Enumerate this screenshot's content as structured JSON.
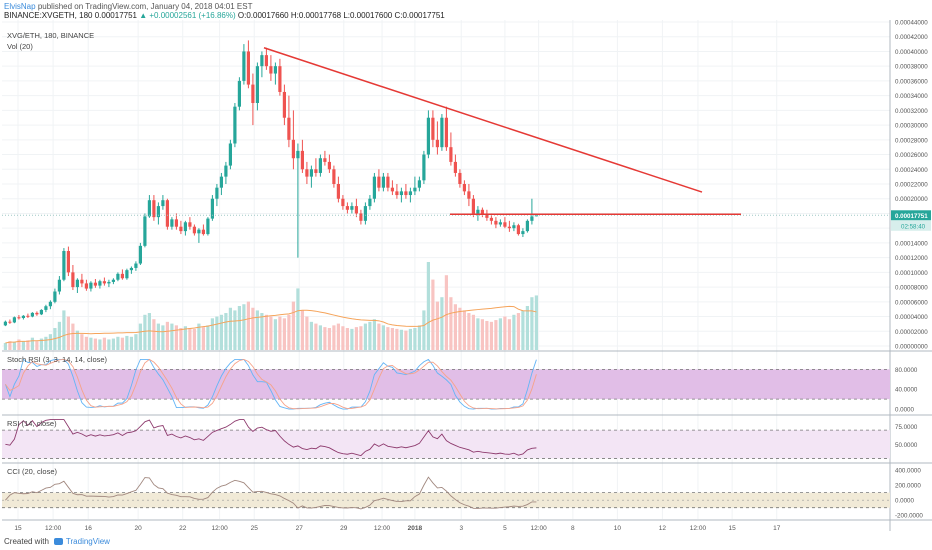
{
  "header": {
    "author": "ElvisNap",
    "published": "published on TradingView.com, January 04, 2018 04:01 EST",
    "symbol_line": "BINANCE:XVGETH, 180",
    "change": "▲ +0.00002561 (+16.86%)",
    "ohlc": "O:0.00017660 H:0.00017768 L:0.00017600 C:0.00017751"
  },
  "colors": {
    "up": "#26a69a",
    "down": "#ef5350",
    "trendline": "#e53935",
    "stoch_fill": "#e1bee7",
    "rsi_fill": "#f3e5f5",
    "cci_fill": "#f1ead7",
    "price_badge": "#26a69a"
  },
  "chart_data": {
    "type": "candlestick",
    "panes": [
      {
        "name": "price",
        "titles": [
          "XVG/ETH, 180, BINANCE",
          "Vol (20)"
        ],
        "ylim": [
          0,
          0.00044
        ],
        "y_ticks": [
          "0.00044000",
          "0.00042000",
          "0.00040000",
          "0.00038000",
          "0.00036000",
          "0.00034000",
          "0.00032000",
          "0.00030000",
          "0.00028000",
          "0.00026000",
          "0.00024000",
          "0.00022000",
          "0.00020000",
          "0.00018000",
          "0.00016000",
          "0.00014000",
          "0.00012000",
          "0.00010000",
          "0.00008000",
          "0.00006000",
          "0.00004000",
          "0.00002000",
          "0.00000000"
        ],
        "last_price": 0.00017751,
        "last_price_label": "0.00017751",
        "countdown_label": "02:58:40",
        "trendline_falling": [
          [
            0,
            0.000405
          ],
          [
            123.7,
            0.000209
          ]
        ],
        "trendline_support": [
          [
            80.8,
            0.00017885
          ],
          [
            125.4,
            0.00017885
          ]
        ],
        "candles": [
          [
            2.8e-05,
            3.45e-05,
            2.7e-05,
            3.3e-05
          ],
          [
            3.3e-05,
            3.6e-05,
            3e-05,
            3.2e-05
          ],
          [
            3.2e-05,
            4e-05,
            3.1e-05,
            3.9e-05
          ],
          [
            3.9e-05,
            4.2e-05,
            3.6e-05,
            3.8e-05
          ],
          [
            3.8e-05,
            4.2e-05,
            3.6e-05,
            4.1e-05
          ],
          [
            4.1e-05,
            4.4e-05,
            3.8e-05,
            4e-05
          ],
          [
            4e-05,
            4.6e-05,
            3.9e-05,
            4.5e-05
          ],
          [
            4.5e-05,
            4.7e-05,
            4.1e-05,
            4.3e-05
          ],
          [
            4.3e-05,
            5e-05,
            4.2e-05,
            4.9e-05
          ],
          [
            4.9e-05,
            5.6e-05,
            4.6e-05,
            5.4e-05
          ],
          [
            5.4e-05,
            6.2e-05,
            5e-05,
            6e-05
          ],
          [
            6e-05,
            7.8e-05,
            5.8e-05,
            7.4e-05
          ],
          [
            7.4e-05,
            9.5e-05,
            7e-05,
            9e-05
          ],
          [
            9e-05,
            0.000133,
            8.8e-05,
            0.000129
          ],
          [
            0.000129,
            0.000135,
            9.5e-05,
            0.0001
          ],
          [
            0.0001,
            0.00011,
            7.6e-05,
            8e-05
          ],
          [
            8e-05,
            9.2e-05,
            7.2e-05,
            9e-05
          ],
          [
            9e-05,
            9.8e-05,
            8e-05,
            8.5e-05
          ],
          [
            8.5e-05,
            9e-05,
            7.5e-05,
            7.8e-05
          ],
          [
            7.8e-05,
            8.8e-05,
            7.4e-05,
            8.6e-05
          ],
          [
            8.6e-05,
            9.1e-05,
            7.9e-05,
            8.2e-05
          ],
          [
            8.2e-05,
            9e-05,
            7.8e-05,
            8.8e-05
          ],
          [
            8.8e-05,
            9.3e-05,
            8.2e-05,
            8.5e-05
          ],
          [
            8.5e-05,
            9e-05,
            8e-05,
            8.7e-05
          ],
          [
            8.7e-05,
            9.2e-05,
            8.4e-05,
            9e-05
          ],
          [
            9e-05,
            0.0001,
            8.8e-05,
            9.8e-05
          ],
          [
            9.8e-05,
            0.000104,
            9e-05,
            9.2e-05
          ],
          [
            9.2e-05,
            0.000105,
            9e-05,
            0.000103
          ],
          [
            0.000103,
            0.000108,
            9.8e-05,
            0.000106
          ],
          [
            0.000106,
            0.000115,
            0.000102,
            0.000112
          ],
          [
            0.000112,
            0.00014,
            0.00011,
            0.000136
          ],
          [
            0.000136,
            0.00018,
            0.000134,
            0.000176
          ],
          [
            0.000176,
            0.000205,
            0.000174,
            0.000198
          ],
          [
            0.000198,
            0.000205,
            0.00017,
            0.000175
          ],
          [
            0.000175,
            0.000195,
            0.000165,
            0.00019
          ],
          [
            0.00019,
            0.000205,
            0.000185,
            0.000198
          ],
          [
            0.000198,
            0.0002,
            0.000158,
            0.000162
          ],
          [
            0.000162,
            0.000175,
            0.000158,
            0.000172
          ],
          [
            0.000172,
            0.00018,
            0.000158,
            0.000162
          ],
          [
            0.000162,
            0.00017,
            0.000152,
            0.000156
          ],
          [
            0.000156,
            0.00017,
            0.00015,
            0.000168
          ],
          [
            0.000168,
            0.000175,
            0.000158,
            0.000162
          ],
          [
            0.000162,
            0.000165,
            0.00015,
            0.000153
          ],
          [
            0.000153,
            0.00016,
            0.00014,
            0.000158
          ],
          [
            0.000158,
            0.000165,
            0.00015,
            0.000152
          ],
          [
            0.000152,
            0.000175,
            0.00015,
            0.000173
          ],
          [
            0.000173,
            0.000205,
            0.00017,
            0.0002
          ],
          [
            0.0002,
            0.00022,
            0.00019,
            0.000215
          ],
          [
            0.000215,
            0.000235,
            0.000205,
            0.00023
          ],
          [
            0.00023,
            0.00025,
            0.00022,
            0.000245
          ],
          [
            0.000245,
            0.00028,
            0.00024,
            0.000275
          ],
          [
            0.000275,
            0.00033,
            0.00027,
            0.000325
          ],
          [
            0.000325,
            0.000365,
            0.00032,
            0.00036
          ],
          [
            0.00036,
            0.00041,
            0.000355,
            0.0004
          ],
          [
            0.0004,
            0.000415,
            0.00035,
            0.000355
          ],
          [
            0.000355,
            0.00037,
            0.0003,
            0.00033
          ],
          [
            0.00033,
            0.000385,
            0.00032,
            0.00038
          ],
          [
            0.00038,
            0.0004,
            0.000365,
            0.000395
          ],
          [
            0.000395,
            0.000405,
            0.000375,
            0.00038
          ],
          [
            0.00038,
            0.000395,
            0.00036,
            0.00037
          ],
          [
            0.00037,
            0.000385,
            0.000355,
            0.00038
          ],
          [
            0.00038,
            0.00039,
            0.00034,
            0.000345
          ],
          [
            0.000345,
            0.000355,
            0.0003,
            0.00031
          ],
          [
            0.00031,
            0.00034,
            0.00027,
            0.00028
          ],
          [
            0.00028,
            0.00032,
            0.00024,
            0.000255
          ],
          [
            0.000255,
            0.000275,
            0.00012,
            0.000265
          ],
          [
            0.000265,
            0.00028,
            0.000235,
            0.00024
          ],
          [
            0.00024,
            0.00025,
            0.00022,
            0.00023
          ],
          [
            0.00023,
            0.000245,
            0.000215,
            0.00024
          ],
          [
            0.00024,
            0.000255,
            0.00023,
            0.000235
          ],
          [
            0.000235,
            0.00026,
            0.00023,
            0.000255
          ],
          [
            0.000255,
            0.000265,
            0.000245,
            0.00025
          ],
          [
            0.00025,
            0.00026,
            0.000235,
            0.00024
          ],
          [
            0.00024,
            0.000245,
            0.000215,
            0.00022
          ],
          [
            0.00022,
            0.00023,
            0.000195,
            0.0002
          ],
          [
            0.0002,
            0.000205,
            0.000185,
            0.00019
          ],
          [
            0.00019,
            0.000195,
            0.00018,
            0.000185
          ],
          [
            0.000185,
            0.000195,
            0.00018,
            0.00019
          ],
          [
            0.00019,
            0.0002,
            0.000175,
            0.00018
          ],
          [
            0.00018,
            0.000185,
            0.000165,
            0.00017
          ],
          [
            0.00017,
            0.000195,
            0.000165,
            0.00019
          ],
          [
            0.00019,
            0.000205,
            0.000185,
            0.0002
          ],
          [
            0.0002,
            0.000235,
            0.000195,
            0.00023
          ],
          [
            0.00023,
            0.00024,
            0.00021,
            0.000215
          ],
          [
            0.000215,
            0.000235,
            0.00021,
            0.00023
          ],
          [
            0.00023,
            0.000235,
            0.00021,
            0.000215
          ],
          [
            0.000215,
            0.000225,
            0.000205,
            0.00021
          ],
          [
            0.00021,
            0.00022,
            0.0002,
            0.000205
          ],
          [
            0.000205,
            0.000215,
            0.000195,
            0.00021
          ],
          [
            0.00021,
            0.00022,
            0.0002,
            0.000205
          ],
          [
            0.000205,
            0.000215,
            0.000195,
            0.00021
          ],
          [
            0.00021,
            0.00023,
            0.000205,
            0.000215
          ],
          [
            0.000215,
            0.00023,
            0.00021,
            0.000225
          ],
          [
            0.000225,
            0.000265,
            0.00022,
            0.00026
          ],
          [
            0.00026,
            0.00032,
            0.000255,
            0.00031
          ],
          [
            0.00031,
            0.00032,
            0.00027,
            0.00028
          ],
          [
            0.00028,
            0.000305,
            0.00026,
            0.00027
          ],
          [
            0.00027,
            0.000315,
            0.000265,
            0.00031
          ],
          [
            0.00031,
            0.000325,
            0.000265,
            0.00027
          ],
          [
            0.00027,
            0.00029,
            0.000245,
            0.00025
          ],
          [
            0.00025,
            0.00026,
            0.00023,
            0.000235
          ],
          [
            0.000235,
            0.00024,
            0.000215,
            0.00022
          ],
          [
            0.00022,
            0.000225,
            0.000205,
            0.00021
          ],
          [
            0.00021,
            0.00022,
            0.00019,
            0.0002
          ],
          [
            0.0002,
            0.000205,
            0.000175,
            0.00018
          ],
          [
            0.00018,
            0.00019,
            0.00017,
            0.000185
          ],
          [
            0.000185,
            0.000188,
            0.000175,
            0.000178
          ],
          [
            0.000178,
            0.000185,
            0.00017,
            0.000174
          ],
          [
            0.000174,
            0.00018,
            0.000165,
            0.00017
          ],
          [
            0.00017,
            0.000175,
            0.00016,
            0.000165
          ],
          [
            0.000165,
            0.000172,
            0.000162,
            0.000168
          ],
          [
            0.000168,
            0.000175,
            0.00016,
            0.000162
          ],
          [
            0.000162,
            0.00017,
            0.000155,
            0.00016
          ],
          [
            0.00016,
            0.000168,
            0.000156,
            0.000164
          ],
          [
            0.000164,
            0.000166,
            0.00015,
            0.000152
          ],
          [
            0.000152,
            0.00016,
            0.000148,
            0.000156
          ],
          [
            0.000156,
            0.000172,
            0.000154,
            0.00017
          ],
          [
            0.00017,
            0.0002,
            0.000165,
            0.000176
          ],
          [
            0.0001766,
            0.0001777,
            0.000176,
            0.0001775
          ]
        ]
      },
      {
        "name": "volume",
        "ylim": [
          0,
          1
        ],
        "values": [
          0.08,
          0.1,
          0.09,
          0.12,
          0.1,
          0.11,
          0.14,
          0.1,
          0.13,
          0.15,
          0.18,
          0.25,
          0.32,
          0.45,
          0.38,
          0.3,
          0.22,
          0.18,
          0.15,
          0.14,
          0.13,
          0.12,
          0.14,
          0.12,
          0.13,
          0.15,
          0.14,
          0.16,
          0.15,
          0.18,
          0.3,
          0.4,
          0.42,
          0.35,
          0.3,
          0.28,
          0.32,
          0.3,
          0.28,
          0.25,
          0.27,
          0.25,
          0.24,
          0.3,
          0.26,
          0.28,
          0.36,
          0.38,
          0.4,
          0.42,
          0.48,
          0.45,
          0.5,
          0.52,
          0.55,
          0.48,
          0.45,
          0.42,
          0.4,
          0.38,
          0.35,
          0.38,
          0.36,
          0.4,
          0.55,
          0.7,
          0.45,
          0.38,
          0.32,
          0.3,
          0.28,
          0.26,
          0.25,
          0.28,
          0.3,
          0.27,
          0.25,
          0.24,
          0.26,
          0.27,
          0.3,
          0.32,
          0.35,
          0.3,
          0.28,
          0.26,
          0.25,
          0.24,
          0.23,
          0.22,
          0.24,
          0.25,
          0.28,
          0.45,
          1.0,
          0.8,
          0.55,
          0.6,
          0.85,
          0.6,
          0.52,
          0.48,
          0.45,
          0.42,
          0.4,
          0.36,
          0.35,
          0.33,
          0.32,
          0.34,
          0.36,
          0.38,
          0.35,
          0.4,
          0.42,
          0.45,
          0.5,
          0.6,
          0.62
        ]
      },
      {
        "name": "stoch_rsi",
        "title": "Stoch RSI (3, 3, 14, 14, close)",
        "ylim": [
          -10,
          115
        ],
        "y_ticks": [
          "80.0000",
          "40.0000",
          "0.0000"
        ],
        "band": [
          20,
          80
        ]
      },
      {
        "name": "rsi",
        "title": "RSI (14, close)",
        "ylim": [
          25,
          90
        ],
        "y_ticks": [
          "75.0000",
          "50.0000"
        ],
        "band": [
          30,
          70
        ]
      },
      {
        "name": "cci",
        "title": "CCI (20, close)",
        "ylim": [
          -250,
          480
        ],
        "y_ticks": [
          "400.0000",
          "200.0000",
          "0.0000",
          "-200.0000"
        ],
        "band": [
          -100,
          100
        ]
      }
    ],
    "x_ticks": [
      {
        "label": "15",
        "bar": 2.8
      },
      {
        "label": "12:00",
        "bar": 10.6
      },
      {
        "label": "16",
        "bar": 18.4
      },
      {
        "label": "20",
        "bar": 29.5
      },
      {
        "label": "22",
        "bar": 39.4
      },
      {
        "label": "12:00",
        "bar": 47.6
      },
      {
        "label": "25",
        "bar": 55.3
      },
      {
        "label": "27",
        "bar": 65.3
      },
      {
        "label": "29",
        "bar": 75.2
      },
      {
        "label": "12:00",
        "bar": 83.7
      },
      {
        "label": "2018",
        "bar": 91.0
      },
      {
        "label": "3",
        "bar": 101.3
      },
      {
        "label": "5",
        "bar": 111.0
      },
      {
        "label": "12:00",
        "bar": 118.5
      },
      {
        "label": "8",
        "bar": 126.1
      },
      {
        "label": "10",
        "bar": 136.0
      },
      {
        "label": "12",
        "bar": 146.0
      },
      {
        "label": "12:00",
        "bar": 153.9
      },
      {
        "label": "15",
        "bar": 161.5
      },
      {
        "label": "17",
        "bar": 171.4
      }
    ]
  },
  "footer": {
    "created_with": "Created with",
    "brand": "TradingView"
  }
}
